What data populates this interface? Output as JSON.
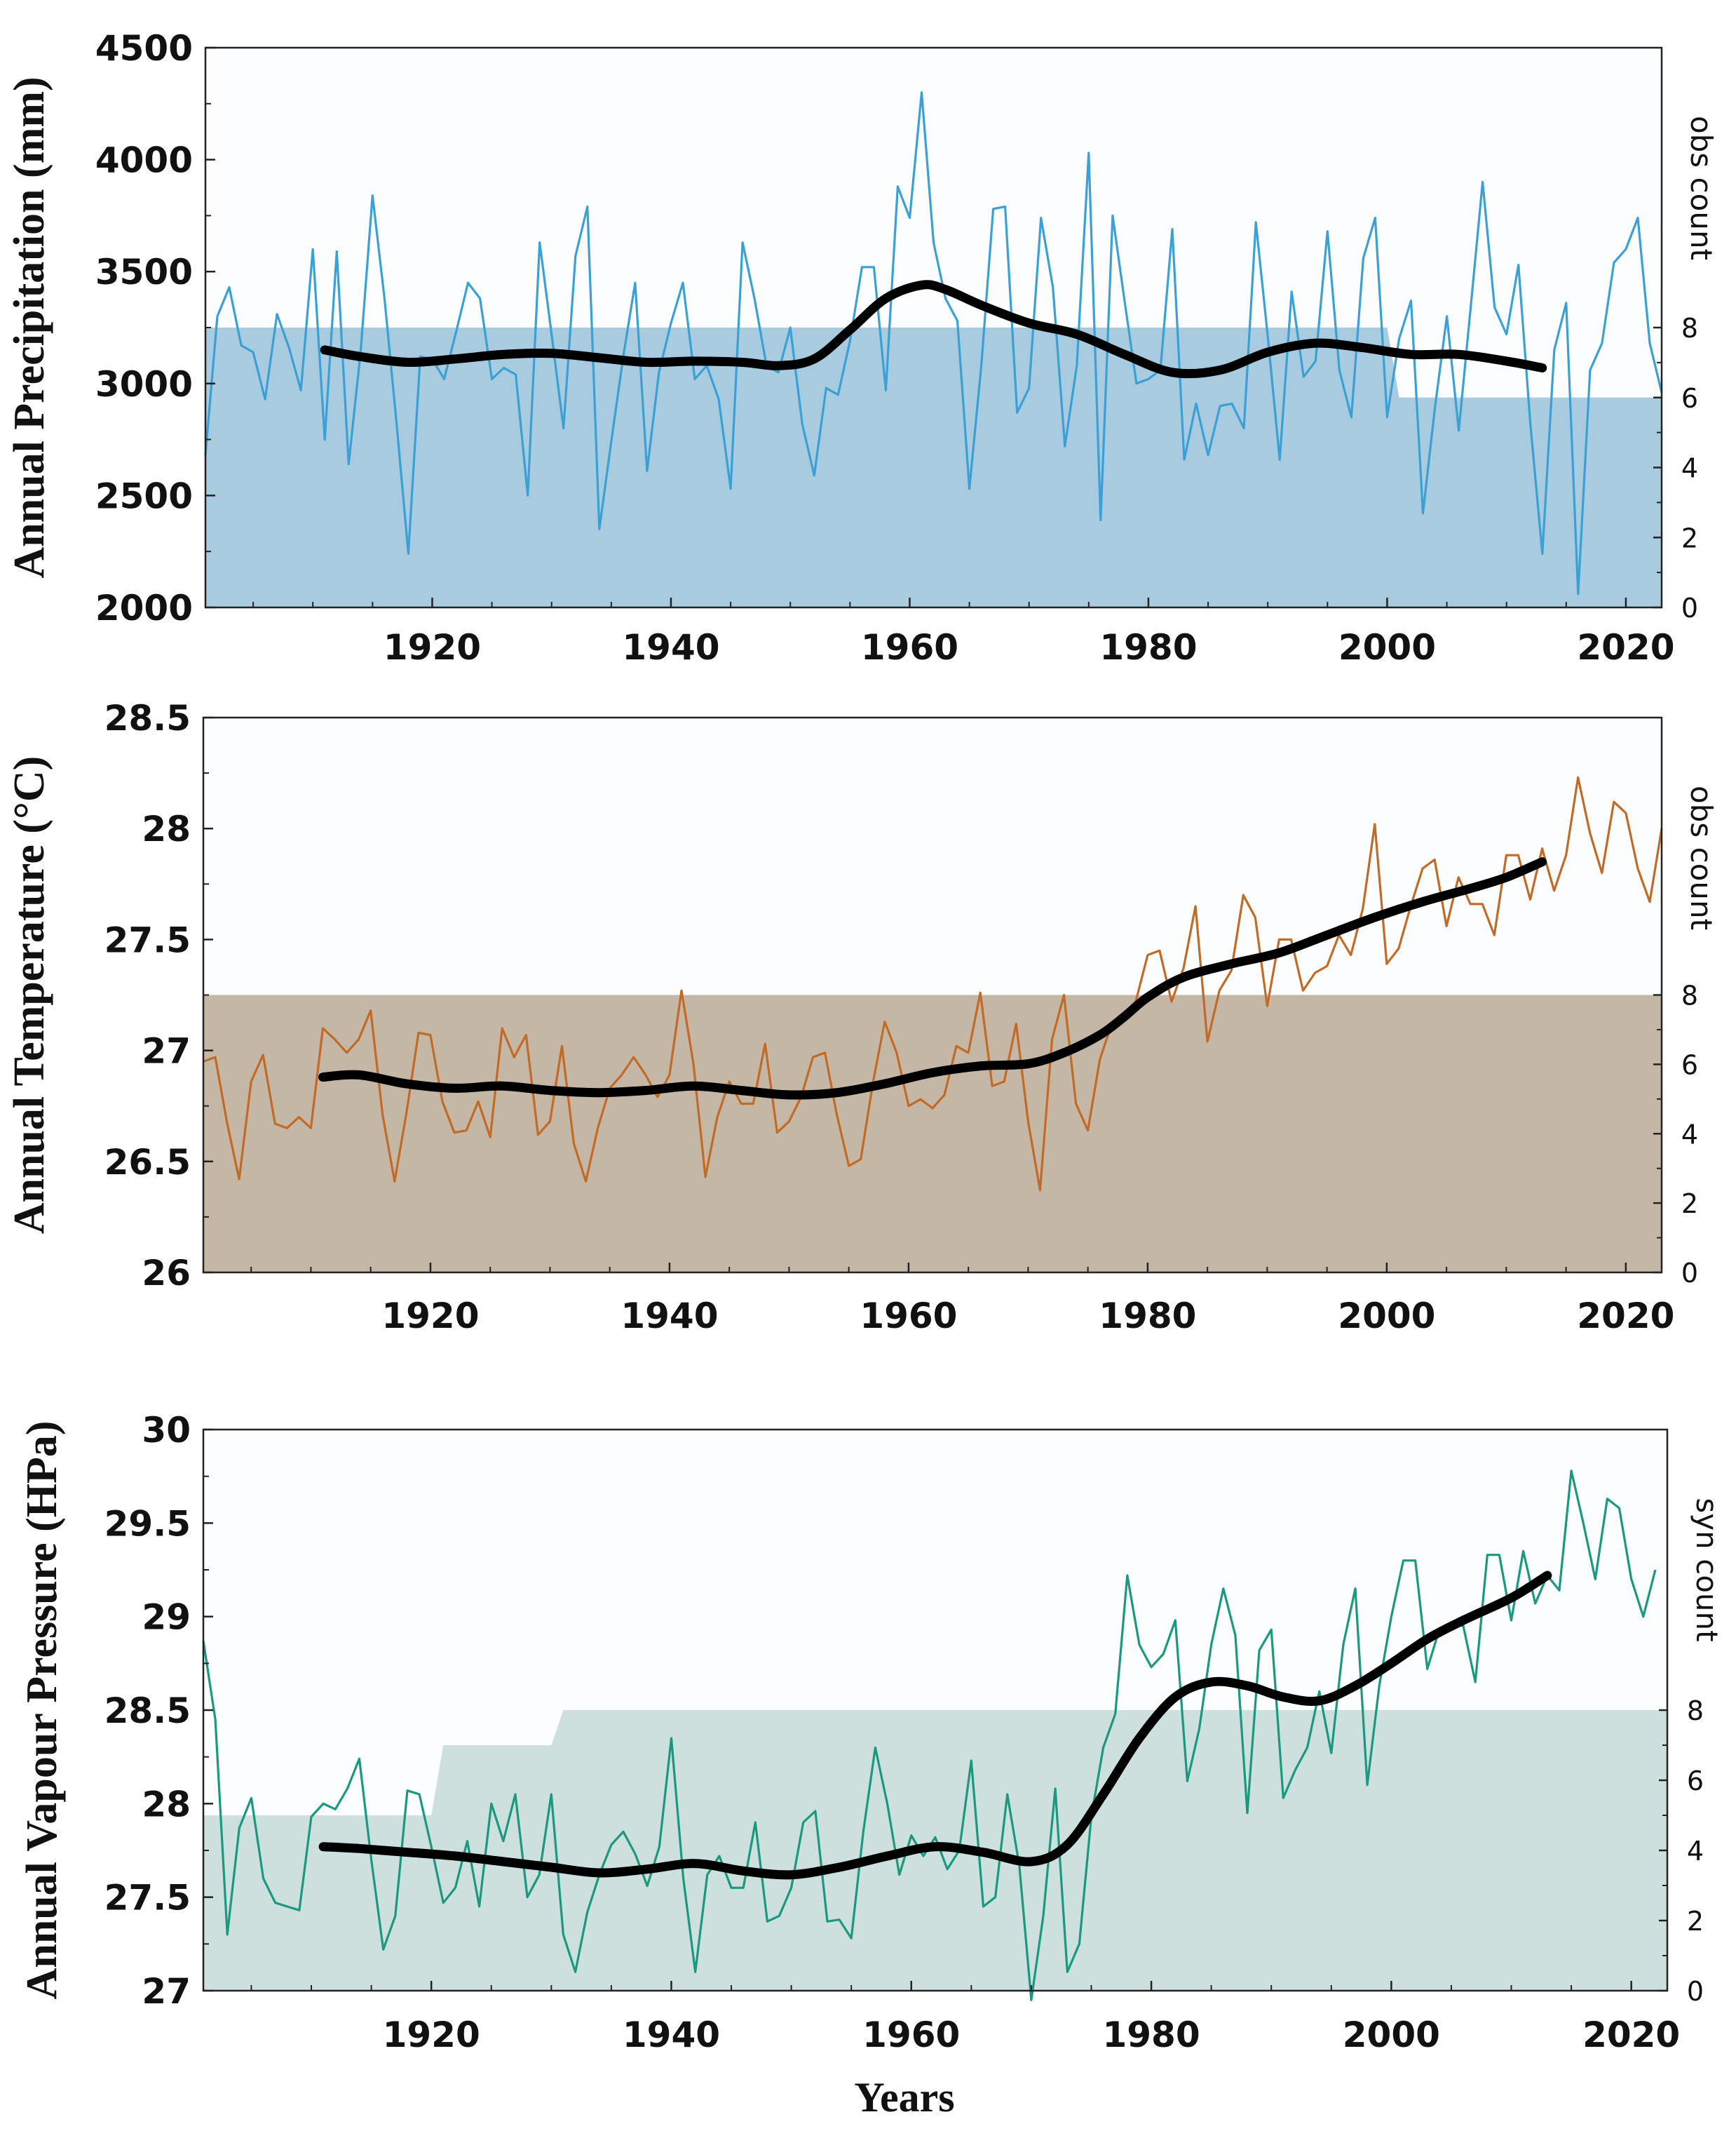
{
  "figure": {
    "xlabel": "Years"
  },
  "chart_data": [
    {
      "type": "line",
      "ylabel": "Annual Precipitation (mm)",
      "right_label": "obs count",
      "line_color": "#3aa0d6",
      "fill_color": "#a9cbe0",
      "xlim": [
        1901,
        2023
      ],
      "ylim": [
        2000,
        4500
      ],
      "right_ylim": [
        0,
        16
      ],
      "x_ticks": [
        1920,
        1940,
        1960,
        1980,
        2000,
        2020
      ],
      "y_ticks": [
        2000,
        2500,
        3000,
        3500,
        4000,
        4500
      ],
      "right_ticks": [
        0,
        2,
        4,
        6,
        8
      ],
      "x_start": 1901,
      "values": [
        2680,
        3300,
        3430,
        3170,
        3140,
        2930,
        3310,
        3160,
        2970,
        3600,
        2750,
        3590,
        2640,
        3140,
        3840,
        3380,
        2830,
        2240,
        3120,
        3110,
        3020,
        3230,
        3450,
        3380,
        3020,
        3070,
        3040,
        2500,
        3630,
        3220,
        2800,
        3570,
        3790,
        2350,
        2740,
        3120,
        3450,
        2610,
        3050,
        3270,
        3450,
        3020,
        3080,
        2930,
        2530,
        3630,
        3380,
        3080,
        3050,
        3250,
        2820,
        2590,
        2980,
        2950,
        3190,
        3520,
        3520,
        2970,
        3880,
        3740,
        4300,
        3630,
        3380,
        3280,
        2530,
        3080,
        3780,
        3790,
        2870,
        2980,
        3740,
        3430,
        2720,
        3080,
        4030,
        2390,
        3750,
        3370,
        3000,
        3020,
        3060,
        3690,
        2660,
        2910,
        2680,
        2900,
        2910,
        2800,
        3720,
        3210,
        2660,
        3410,
        3030,
        3100,
        3680,
        3060,
        2850,
        3560,
        3740,
        2850,
        3200,
        3370,
        2420,
        2890,
        3300,
        2790,
        3340,
        3900,
        3340,
        3220,
        3530,
        2820,
        2240,
        3150,
        3360,
        2060,
        3060,
        3180,
        3540,
        3600,
        3740,
        3180,
        2960
      ],
      "smooth": {
        "x": [
          1911,
          1914,
          1918,
          1922,
          1926,
          1930,
          1934,
          1938,
          1942,
          1946,
          1949,
          1952,
          1955,
          1958,
          1961,
          1963,
          1966,
          1970,
          1974,
          1978,
          1982,
          1986,
          1990,
          1994,
          1998,
          2002,
          2006,
          2010,
          2013
        ],
        "y": [
          3150,
          3120,
          3095,
          3110,
          3130,
          3135,
          3115,
          3095,
          3100,
          3095,
          3080,
          3110,
          3240,
          3380,
          3440,
          3420,
          3350,
          3270,
          3220,
          3130,
          3050,
          3060,
          3140,
          3180,
          3160,
          3130,
          3130,
          3100,
          3070
        ]
      },
      "count_steps": [
        [
          1901,
          8
        ],
        [
          2000,
          8
        ],
        [
          2001,
          6
        ],
        [
          2023,
          6
        ]
      ]
    },
    {
      "type": "line",
      "ylabel": "Annual Temperature (°C)",
      "right_label": "obs count",
      "line_color": "#c26a26",
      "fill_color": "#c5b7a6",
      "xlim": [
        1901,
        2023
      ],
      "ylim": [
        26,
        28.5
      ],
      "right_ylim": [
        0,
        16
      ],
      "x_ticks": [
        1920,
        1940,
        1960,
        1980,
        2000,
        2020
      ],
      "y_ticks": [
        "26",
        "26.5",
        "27",
        "27.5",
        "28",
        "28.5"
      ],
      "y_tick_values": [
        26,
        26.5,
        27,
        27.5,
        28,
        28.5
      ],
      "right_ticks": [
        0,
        2,
        4,
        6,
        8
      ],
      "x_start": 1901,
      "values": [
        26.95,
        26.97,
        26.67,
        26.42,
        26.86,
        26.98,
        26.67,
        26.65,
        26.7,
        26.65,
        27.1,
        27.05,
        26.99,
        27.05,
        27.18,
        26.71,
        26.41,
        26.72,
        27.08,
        27.07,
        26.77,
        26.63,
        26.64,
        26.77,
        26.61,
        27.1,
        26.97,
        27.07,
        26.62,
        26.68,
        27.02,
        26.58,
        26.41,
        26.65,
        26.83,
        26.89,
        26.97,
        26.89,
        26.79,
        26.89,
        27.27,
        26.94,
        26.43,
        26.7,
        26.86,
        26.76,
        26.76,
        27.03,
        26.63,
        26.68,
        26.79,
        26.97,
        26.99,
        26.71,
        26.48,
        26.51,
        26.85,
        27.13,
        26.99,
        26.75,
        26.78,
        26.74,
        26.8,
        27.02,
        26.99,
        27.26,
        26.84,
        26.86,
        27.12,
        26.68,
        26.37,
        27.05,
        27.25,
        26.76,
        26.64,
        26.96,
        27.12,
        27.15,
        27.22,
        27.43,
        27.45,
        27.22,
        27.37,
        27.65,
        27.04,
        27.27,
        27.36,
        27.7,
        27.6,
        27.2,
        27.5,
        27.5,
        27.27,
        27.35,
        27.38,
        27.52,
        27.43,
        27.64,
        28.02,
        27.39,
        27.46,
        27.65,
        27.82,
        27.86,
        27.56,
        27.78,
        27.66,
        27.66,
        27.52,
        27.88,
        27.88,
        27.68,
        27.91,
        27.72,
        27.88,
        28.23,
        27.98,
        27.8,
        28.12,
        28.07,
        27.82,
        27.67,
        28.0
      ],
      "smooth": {
        "x": [
          1911,
          1914,
          1918,
          1922,
          1926,
          1930,
          1934,
          1938,
          1942,
          1946,
          1950,
          1954,
          1958,
          1962,
          1966,
          1970,
          1973,
          1976,
          1978,
          1980,
          1983,
          1987,
          1991,
          1995,
          1999,
          2003,
          2007,
          2010,
          2013
        ],
        "y": [
          26.88,
          26.89,
          26.85,
          26.83,
          26.84,
          26.82,
          26.81,
          26.82,
          26.84,
          26.82,
          26.8,
          26.81,
          26.85,
          26.9,
          26.93,
          26.94,
          26.99,
          27.07,
          27.15,
          27.24,
          27.33,
          27.39,
          27.44,
          27.52,
          27.6,
          27.67,
          27.73,
          27.78,
          27.85
        ]
      },
      "count_steps": [
        [
          1901,
          8
        ],
        [
          2023,
          8
        ]
      ]
    },
    {
      "type": "line",
      "ylabel": "Annual Vapour Pressure (HPa)",
      "right_label": "syn count",
      "line_color": "#1a9880",
      "fill_color": "#cde0dd",
      "xlim": [
        1901,
        2023
      ],
      "ylim": [
        27,
        30
      ],
      "right_ylim": [
        0,
        16
      ],
      "x_ticks": [
        1920,
        1940,
        1960,
        1980,
        2000,
        2020
      ],
      "y_ticks": [
        "27",
        "27.5",
        "28",
        "28.5",
        "29",
        "29.5",
        "30"
      ],
      "y_tick_values": [
        27,
        27.5,
        28,
        28.5,
        29,
        29.5,
        30
      ],
      "right_ticks": [
        0,
        2,
        4,
        6,
        8
      ],
      "x_start": 1901,
      "values": [
        28.87,
        28.45,
        27.3,
        27.87,
        28.03,
        27.6,
        27.47,
        27.45,
        27.43,
        27.93,
        28.0,
        27.97,
        28.08,
        28.24,
        27.7,
        27.22,
        27.4,
        28.07,
        28.05,
        27.77,
        27.47,
        27.55,
        27.8,
        27.45,
        28.0,
        27.8,
        28.05,
        27.5,
        27.62,
        28.05,
        27.3,
        27.1,
        27.42,
        27.62,
        27.78,
        27.85,
        27.73,
        27.56,
        27.77,
        28.35,
        27.6,
        27.1,
        27.62,
        27.72,
        27.55,
        27.55,
        27.9,
        27.37,
        27.4,
        27.55,
        27.9,
        27.96,
        27.37,
        27.38,
        27.28,
        27.85,
        28.3,
        28.0,
        27.62,
        27.83,
        27.72,
        27.82,
        27.65,
        27.75,
        28.23,
        27.45,
        27.5,
        28.05,
        27.67,
        26.95,
        27.4,
        28.08,
        27.1,
        27.25,
        27.93,
        28.3,
        28.48,
        29.22,
        28.85,
        28.73,
        28.8,
        28.98,
        28.12,
        28.4,
        28.85,
        29.15,
        28.9,
        27.95,
        28.82,
        28.93,
        28.03,
        28.18,
        28.3,
        28.6,
        28.27,
        28.85,
        29.15,
        28.1,
        28.63,
        29.0,
        29.3,
        29.3,
        28.72,
        28.93,
        28.96,
        28.95,
        28.65,
        29.33,
        29.33,
        28.98,
        29.35,
        29.07,
        29.22,
        29.14,
        29.78,
        29.5,
        29.2,
        29.63,
        29.58,
        29.2,
        29.0,
        29.25
      ],
      "smooth": {
        "x": [
          1911,
          1914,
          1918,
          1922,
          1926,
          1930,
          1934,
          1938,
          1942,
          1946,
          1950,
          1954,
          1958,
          1962,
          1966,
          1970,
          1973,
          1976,
          1979,
          1982,
          1985,
          1988,
          1991,
          1994,
          1997,
          2000,
          2003,
          2006,
          2010,
          2013
        ],
        "y": [
          27.77,
          27.76,
          27.74,
          27.72,
          27.69,
          27.66,
          27.63,
          27.65,
          27.68,
          27.64,
          27.62,
          27.66,
          27.72,
          27.77,
          27.74,
          27.69,
          27.78,
          28.05,
          28.35,
          28.57,
          28.65,
          28.63,
          28.57,
          28.55,
          28.63,
          28.75,
          28.88,
          28.98,
          29.1,
          29.22
        ]
      },
      "count_steps": [
        [
          1901,
          5
        ],
        [
          1920,
          5
        ],
        [
          1921,
          7
        ],
        [
          1930,
          7
        ],
        [
          1931,
          8
        ],
        [
          2023,
          8
        ]
      ]
    }
  ]
}
